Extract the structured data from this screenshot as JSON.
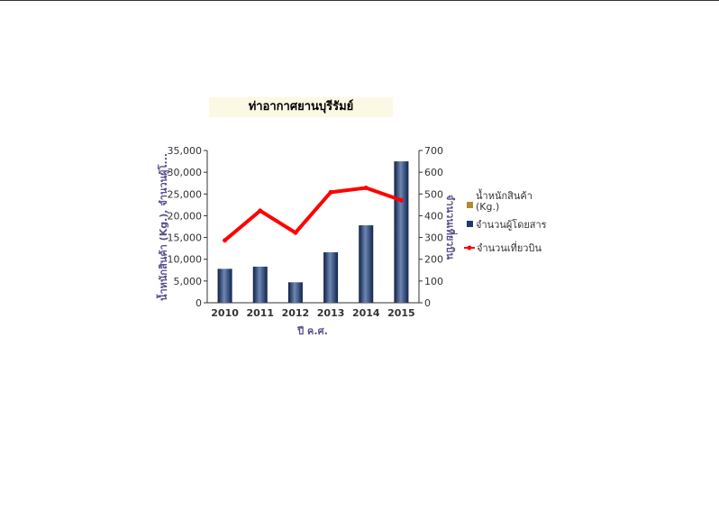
{
  "chart_data": {
    "type": "bar",
    "title": "ท่าอากาศยานบุรีรัมย์",
    "xlabel": "ปี ค.ศ.",
    "ylabel_left": "น้ำหนักสินค้า (Kg.), จำนวนผู้โ...",
    "ylabel_right": "จำนวนเที่ยวบิน",
    "categories": [
      "2010",
      "2011",
      "2012",
      "2013",
      "2014",
      "2015"
    ],
    "y_left": {
      "ylim": [
        0,
        35000
      ],
      "ticks": [
        "0",
        "5,000",
        "10,000",
        "15,000",
        "20,000",
        "25,000",
        "30,000",
        "35,000"
      ]
    },
    "y_right": {
      "ylim": [
        0,
        700
      ],
      "ticks": [
        "0",
        "100",
        "200",
        "300",
        "400",
        "500",
        "600",
        "700"
      ]
    },
    "series": [
      {
        "name": "น้ำหนักสินค้า (Kg.)",
        "type": "bar",
        "axis": "left",
        "color": "#b08a2e",
        "values": [
          0,
          0,
          0,
          0,
          0,
          0
        ]
      },
      {
        "name": "จำนวนผู้โดยสาร",
        "type": "bar",
        "axis": "left",
        "color": "#1f3a6b",
        "values": [
          7800,
          8300,
          4700,
          11600,
          17800,
          32500
        ]
      },
      {
        "name": "จำนวนเที่ยวบิน",
        "type": "line",
        "axis": "right",
        "color": "#ff0000",
        "values": [
          287,
          423,
          322,
          508,
          528,
          471
        ]
      }
    ],
    "legend_position": "right",
    "grid": false
  }
}
